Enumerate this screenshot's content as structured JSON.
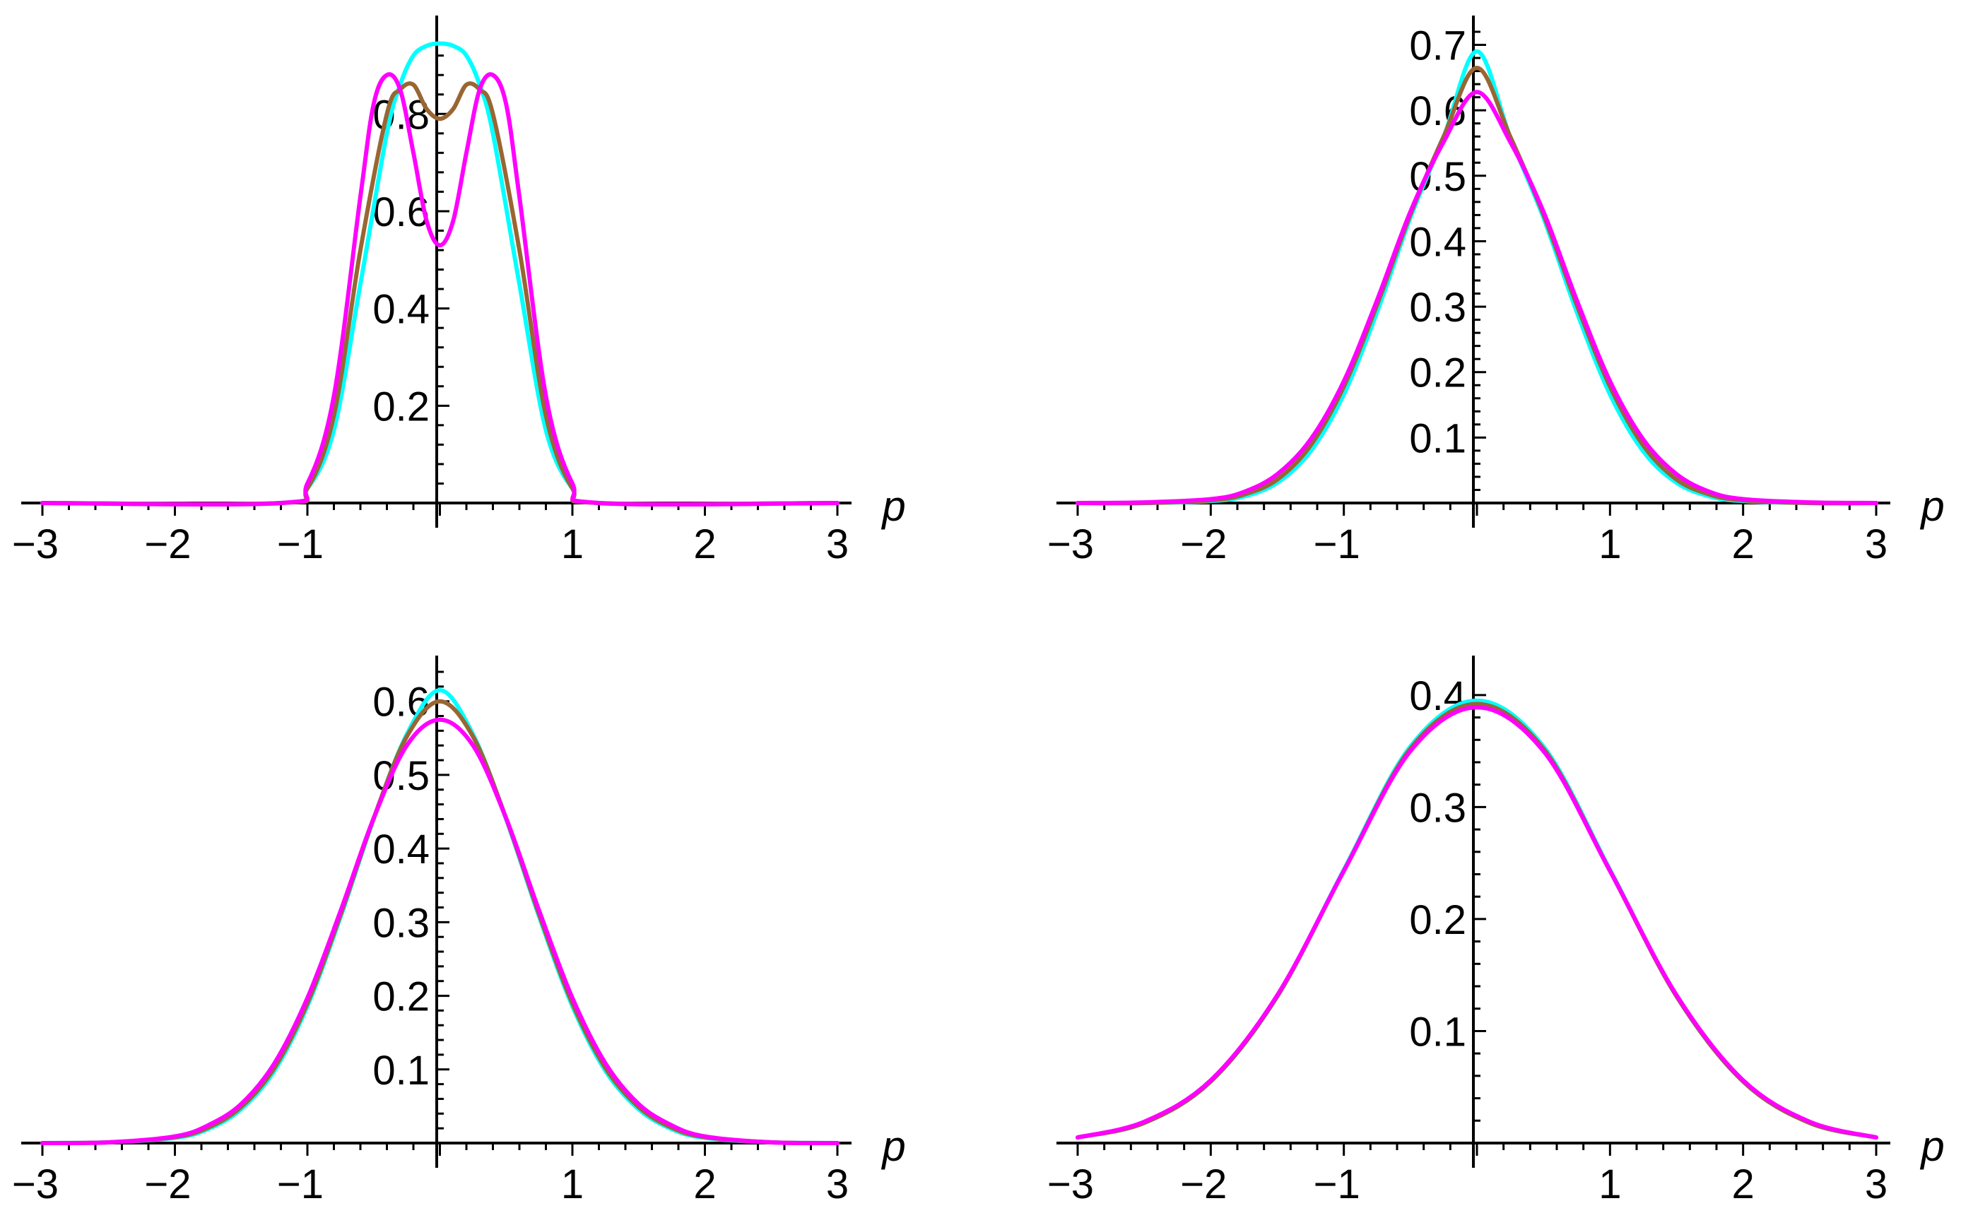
{
  "colors": {
    "cyan": "#00FFFF",
    "brown": "#996633",
    "magenta": "#FF00FF",
    "axis": "#000000"
  },
  "chart_data": [
    {
      "type": "line",
      "xlabel": "p",
      "ylabel": "",
      "xlim": [
        -3,
        3
      ],
      "ylim": [
        0,
        0.95
      ],
      "x_ticks": [
        -3,
        -2,
        -1,
        1,
        2,
        3
      ],
      "x_tick_labels": [
        "−3",
        "−2",
        "−1",
        "1",
        "2",
        "3"
      ],
      "y_ticks": [
        0.2,
        0.4,
        0.6,
        0.8
      ],
      "y_tick_labels": [
        "0.2",
        "0.4",
        "0.6",
        "0.8"
      ],
      "series": [
        {
          "color": "cyan",
          "x": [
            -1.2,
            -1.0,
            -0.8,
            -0.6,
            -0.4,
            -0.3,
            -0.2,
            -0.1,
            0,
            0.1,
            0.2,
            0.3,
            0.4,
            0.6,
            0.8,
            1.0,
            1.2
          ],
          "y": [
            0.0,
            0.03,
            0.15,
            0.45,
            0.76,
            0.86,
            0.92,
            0.94,
            0.945,
            0.94,
            0.92,
            0.86,
            0.76,
            0.45,
            0.15,
            0.03,
            0.0
          ]
        },
        {
          "color": "brown",
          "x": [
            -1.2,
            -1.0,
            -0.8,
            -0.6,
            -0.4,
            -0.3,
            -0.2,
            -0.1,
            0,
            0.1,
            0.2,
            0.3,
            0.4,
            0.6,
            0.8,
            1.0,
            1.2
          ],
          "y": [
            0.0,
            0.03,
            0.18,
            0.52,
            0.8,
            0.85,
            0.86,
            0.81,
            0.79,
            0.81,
            0.86,
            0.85,
            0.8,
            0.52,
            0.18,
            0.03,
            0.0
          ]
        },
        {
          "color": "magenta",
          "x": [
            -1.2,
            -1.0,
            -0.8,
            -0.6,
            -0.5,
            -0.4,
            -0.3,
            -0.2,
            -0.1,
            0,
            0.1,
            0.2,
            0.3,
            0.4,
            0.5,
            0.6,
            0.8,
            1.0,
            1.2
          ],
          "y": [
            0.0,
            0.04,
            0.22,
            0.63,
            0.82,
            0.88,
            0.85,
            0.72,
            0.58,
            0.53,
            0.58,
            0.72,
            0.85,
            0.88,
            0.82,
            0.63,
            0.22,
            0.04,
            0.0
          ]
        }
      ]
    },
    {
      "type": "line",
      "xlabel": "p",
      "ylabel": "",
      "xlim": [
        -3,
        3
      ],
      "ylim": [
        0,
        0.72
      ],
      "x_ticks": [
        -3,
        -2,
        -1,
        1,
        2,
        3
      ],
      "x_tick_labels": [
        "−3",
        "−2",
        "−1",
        "1",
        "2",
        "3"
      ],
      "y_ticks": [
        0.1,
        0.2,
        0.3,
        0.4,
        0.5,
        0.6,
        0.7
      ],
      "y_tick_labels": [
        "0.1",
        "0.2",
        "0.3",
        "0.4",
        "0.5",
        "0.6",
        "0.7"
      ],
      "series": [
        {
          "color": "cyan",
          "x": [
            -3,
            -2.5,
            -2,
            -1.75,
            -1.5,
            -1.25,
            -1,
            -0.75,
            -0.5,
            -0.25,
            0,
            0.25,
            0.5,
            0.75,
            1,
            1.25,
            1.5,
            1.75,
            2,
            2.5,
            3
          ],
          "y": [
            0.0,
            0.0,
            0.003,
            0.01,
            0.031,
            0.079,
            0.166,
            0.292,
            0.436,
            0.559,
            0.69,
            0.559,
            0.436,
            0.292,
            0.166,
            0.079,
            0.031,
            0.01,
            0.003,
            0.0,
            0.0
          ]
        },
        {
          "color": "brown",
          "x": [
            -3,
            -2.5,
            -2,
            -1.75,
            -1.5,
            -1.25,
            -1,
            -0.75,
            -0.5,
            -0.25,
            0,
            0.25,
            0.5,
            0.75,
            1,
            1.25,
            1.5,
            1.75,
            2,
            2.5,
            3
          ],
          "y": [
            0.0,
            0.0,
            0.004,
            0.013,
            0.036,
            0.088,
            0.178,
            0.303,
            0.441,
            0.56,
            0.665,
            0.56,
            0.441,
            0.303,
            0.178,
            0.088,
            0.036,
            0.013,
            0.004,
            0.0,
            0.0
          ]
        },
        {
          "color": "magenta",
          "x": [
            -3,
            -2.5,
            -2,
            -1.75,
            -1.5,
            -1.25,
            -1,
            -0.75,
            -0.5,
            -0.25,
            0,
            0.25,
            0.5,
            0.75,
            1,
            1.25,
            1.5,
            1.75,
            2,
            2.5,
            3
          ],
          "y": [
            0.0,
            0.001,
            0.006,
            0.017,
            0.044,
            0.097,
            0.186,
            0.31,
            0.445,
            0.552,
            0.628,
            0.552,
            0.445,
            0.31,
            0.186,
            0.097,
            0.044,
            0.017,
            0.006,
            0.001,
            0.0
          ]
        }
      ]
    },
    {
      "type": "line",
      "xlabel": "p",
      "ylabel": "",
      "xlim": [
        -3,
        3
      ],
      "ylim": [
        0,
        0.64
      ],
      "x_ticks": [
        -3,
        -2,
        -1,
        1,
        2,
        3
      ],
      "x_tick_labels": [
        "−3",
        "−2",
        "−1",
        "1",
        "2",
        "3"
      ],
      "y_ticks": [
        0.1,
        0.2,
        0.3,
        0.4,
        0.5,
        0.6
      ],
      "y_tick_labels": [
        "0.1",
        "0.2",
        "0.3",
        "0.4",
        "0.5",
        "0.6"
      ],
      "series": [
        {
          "color": "cyan",
          "x": [
            -3,
            -2.5,
            -2,
            -1.75,
            -1.5,
            -1.25,
            -1,
            -0.75,
            -0.5,
            -0.25,
            0,
            0.25,
            0.5,
            0.75,
            1,
            1.25,
            1.5,
            1.75,
            2,
            2.5,
            3
          ],
          "y": [
            0.0,
            0.001,
            0.007,
            0.019,
            0.046,
            0.098,
            0.186,
            0.307,
            0.44,
            0.555,
            0.615,
            0.555,
            0.44,
            0.307,
            0.186,
            0.098,
            0.046,
            0.019,
            0.007,
            0.001,
            0.0
          ]
        },
        {
          "color": "brown",
          "x": [
            -3,
            -2.5,
            -2,
            -1.75,
            -1.5,
            -1.25,
            -1,
            -0.75,
            -0.5,
            -0.25,
            0,
            0.25,
            0.5,
            0.75,
            1,
            1.25,
            1.5,
            1.75,
            2,
            2.5,
            3
          ],
          "y": [
            0.0,
            0.001,
            0.008,
            0.021,
            0.049,
            0.102,
            0.19,
            0.31,
            0.441,
            0.552,
            0.6,
            0.552,
            0.441,
            0.31,
            0.19,
            0.102,
            0.049,
            0.021,
            0.008,
            0.001,
            0.0
          ]
        },
        {
          "color": "magenta",
          "x": [
            -3,
            -2.5,
            -2,
            -1.75,
            -1.5,
            -1.25,
            -1,
            -0.75,
            -0.5,
            -0.25,
            0,
            0.25,
            0.5,
            0.75,
            1,
            1.25,
            1.5,
            1.75,
            2,
            2.5,
            3
          ],
          "y": [
            0.0,
            0.001,
            0.009,
            0.024,
            0.053,
            0.108,
            0.197,
            0.315,
            0.441,
            0.54,
            0.575,
            0.54,
            0.441,
            0.315,
            0.197,
            0.108,
            0.053,
            0.024,
            0.009,
            0.001,
            0.0
          ]
        }
      ]
    },
    {
      "type": "line",
      "xlabel": "p",
      "ylabel": "",
      "xlim": [
        -3,
        3
      ],
      "ylim": [
        0,
        0.41
      ],
      "x_ticks": [
        -3,
        -2,
        -1,
        1,
        2,
        3
      ],
      "x_tick_labels": [
        "−3",
        "−2",
        "−1",
        "1",
        "2",
        "3"
      ],
      "y_ticks": [
        0.1,
        0.2,
        0.3,
        0.4
      ],
      "y_tick_labels": [
        "0.1",
        "0.2",
        "0.3",
        "0.4"
      ],
      "series": [
        {
          "color": "cyan",
          "x": [
            -3,
            -2.5,
            -2,
            -1.5,
            -1,
            -0.5,
            0,
            0.5,
            1,
            1.5,
            2,
            2.5,
            3
          ],
          "y": [
            0.005,
            0.018,
            0.055,
            0.131,
            0.244,
            0.354,
            0.395,
            0.354,
            0.244,
            0.131,
            0.055,
            0.018,
            0.005
          ]
        },
        {
          "color": "brown",
          "x": [
            -3,
            -2.5,
            -2,
            -1.5,
            -1,
            -0.5,
            0,
            0.5,
            1,
            1.5,
            2,
            2.5,
            3
          ],
          "y": [
            0.005,
            0.018,
            0.055,
            0.131,
            0.243,
            0.352,
            0.392,
            0.352,
            0.243,
            0.131,
            0.055,
            0.018,
            0.005
          ]
        },
        {
          "color": "magenta",
          "x": [
            -3,
            -2.5,
            -2,
            -1.5,
            -1,
            -0.5,
            0,
            0.5,
            1,
            1.5,
            2,
            2.5,
            3
          ],
          "y": [
            0.005,
            0.019,
            0.056,
            0.132,
            0.243,
            0.35,
            0.389,
            0.35,
            0.243,
            0.132,
            0.056,
            0.019,
            0.005
          ]
        }
      ]
    }
  ]
}
